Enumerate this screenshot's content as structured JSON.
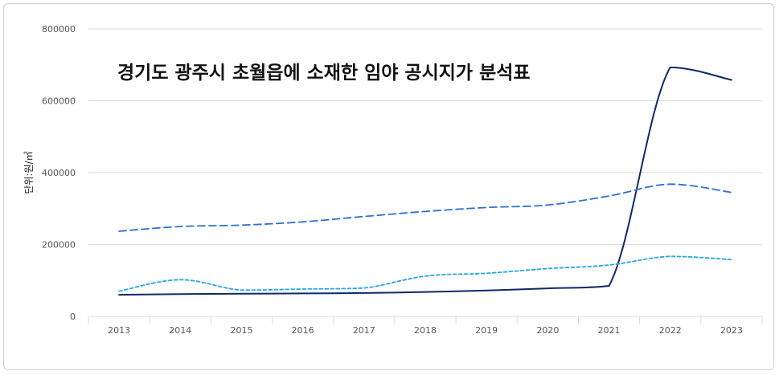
{
  "chart_data": {
    "type": "line",
    "title": "경기도  광주시 초월읍에 소재한 임야 공시지가 분석표",
    "ylabel": "단위:원/㎡",
    "xlabel": "",
    "categories": [
      "2013",
      "2014",
      "2015",
      "2016",
      "2017",
      "2018",
      "2019",
      "2020",
      "2021",
      "2022",
      "2023"
    ],
    "ylim": [
      0,
      800000
    ],
    "yticks": [
      0,
      200000,
      400000,
      600000,
      800000
    ],
    "grid": true,
    "series": [
      {
        "style": "solid",
        "color": "#0d2a6b",
        "values": [
          60000,
          62000,
          63000,
          64000,
          65000,
          68000,
          72000,
          78000,
          85000,
          693000,
          658000
        ]
      },
      {
        "style": "dashed",
        "color": "#2f6fd6",
        "values": [
          237000,
          250000,
          254000,
          263000,
          278000,
          292000,
          303000,
          310000,
          335000,
          368000,
          345000
        ]
      },
      {
        "style": "dotted",
        "color": "#27a8e6",
        "values": [
          70000,
          102000,
          73000,
          76000,
          79000,
          112000,
          120000,
          133000,
          143000,
          167000,
          158000
        ]
      }
    ]
  }
}
